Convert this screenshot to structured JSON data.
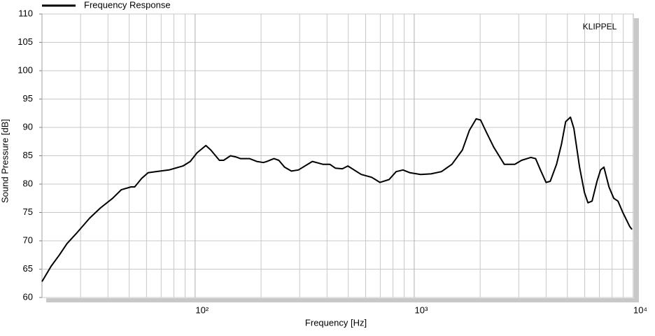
{
  "chart_data": {
    "type": "line",
    "title": "Frequency Response",
    "watermark": "KLIPPEL",
    "watermark_color": "#2e4a9a",
    "xlabel": "Frequency  [Hz]",
    "ylabel": "Sound Pressure  [dB]",
    "log_x": true,
    "grid": true,
    "legend": "top-left",
    "xlim": [
      20,
      10000
    ],
    "ylim": [
      60,
      110
    ],
    "xticks": [
      {
        "value": 100,
        "label": "10²"
      },
      {
        "value": 1000,
        "label": "10³"
      },
      {
        "value": 10000,
        "label": "10⁴"
      }
    ],
    "xgrid_minor": [
      30,
      40,
      50,
      60,
      70,
      80,
      90,
      200,
      300,
      400,
      500,
      600,
      700,
      800,
      900,
      2000,
      3000,
      4000,
      5000,
      6000,
      7000,
      8000,
      9000
    ],
    "yticks": [
      60,
      65,
      70,
      75,
      80,
      85,
      90,
      95,
      100,
      105,
      110
    ],
    "x": [
      20,
      22,
      24,
      26,
      29,
      33,
      37,
      42,
      46,
      51,
      53,
      57,
      61,
      66,
      76,
      88,
      95,
      102,
      112,
      118,
      129,
      135,
      145,
      153,
      161,
      177,
      191,
      205,
      213,
      229,
      241,
      256,
      275,
      296,
      343,
      383,
      412,
      437,
      470,
      498,
      532,
      573,
      640,
      698,
      768,
      827,
      889,
      957,
      1069,
      1192,
      1331,
      1486,
      1659,
      1786,
      1919,
      2009,
      2143,
      2307,
      2576,
      2877,
      3092,
      3404,
      3581,
      3767,
      3996,
      4177,
      4463,
      4699,
      4909,
      5166,
      5357,
      5684,
      5986,
      6209,
      6486,
      6828,
      7087,
      7345,
      7742,
      8147,
      8511,
      8954,
      9639,
      9862
    ],
    "series": [
      {
        "name": "Frequency Response",
        "color": "#000000",
        "values": [
          62.8,
          65.5,
          67.5,
          69.5,
          71.5,
          74,
          75.8,
          77.5,
          79,
          79.5,
          79.5,
          81,
          82,
          82.2,
          82.5,
          83.2,
          84,
          85.5,
          86.8,
          86,
          84.2,
          84.2,
          85,
          84.8,
          84.5,
          84.5,
          84,
          83.8,
          84,
          84.5,
          84.2,
          83,
          82.3,
          82.5,
          84,
          83.5,
          83.5,
          82.8,
          82.7,
          83.2,
          82.5,
          81.7,
          81.2,
          80.3,
          80.8,
          82.2,
          82.5,
          82,
          81.7,
          81.8,
          82.2,
          83.5,
          86,
          89.5,
          91.5,
          91.3,
          89,
          86.5,
          83.5,
          83.5,
          84.2,
          84.7,
          84.5,
          82.5,
          80.3,
          80.5,
          83.5,
          87,
          91,
          91.8,
          89.8,
          83,
          78.5,
          76.7,
          77,
          80.5,
          82.5,
          83,
          79.5,
          77.5,
          77,
          75,
          72.5,
          72
        ]
      }
    ]
  }
}
